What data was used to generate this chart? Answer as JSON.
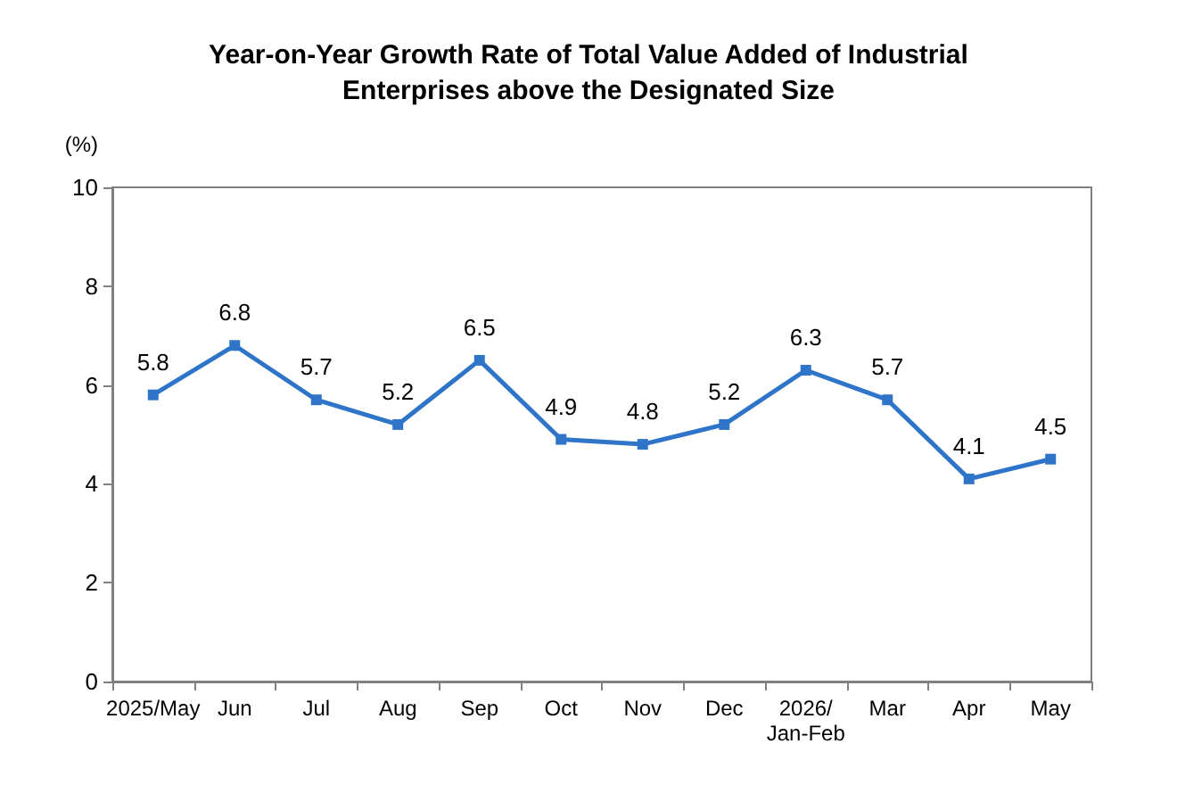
{
  "chart_data": {
    "type": "line",
    "title": "Year-on-Year Growth Rate of Total Value Added of Industrial\nEnterprises above the Designated Size",
    "ylabel": "(%)",
    "categories": [
      "2025/May",
      "Jun",
      "Jul",
      "Aug",
      "Sep",
      "Oct",
      "Nov",
      "Dec",
      "2026/\nJan-Feb",
      "Mar",
      "Apr",
      "May"
    ],
    "series": [
      {
        "color": "#2e74c8",
        "values": [
          5.8,
          6.8,
          5.7,
          5.2,
          6.5,
          4.9,
          4.8,
          5.2,
          6.3,
          5.7,
          4.1,
          4.5
        ]
      }
    ],
    "ylim": [
      0,
      10
    ],
    "yticks": [
      0,
      2,
      4,
      6,
      8,
      10
    ],
    "grid": false,
    "marker": "square",
    "line_style": "solid",
    "data_labels": true
  }
}
